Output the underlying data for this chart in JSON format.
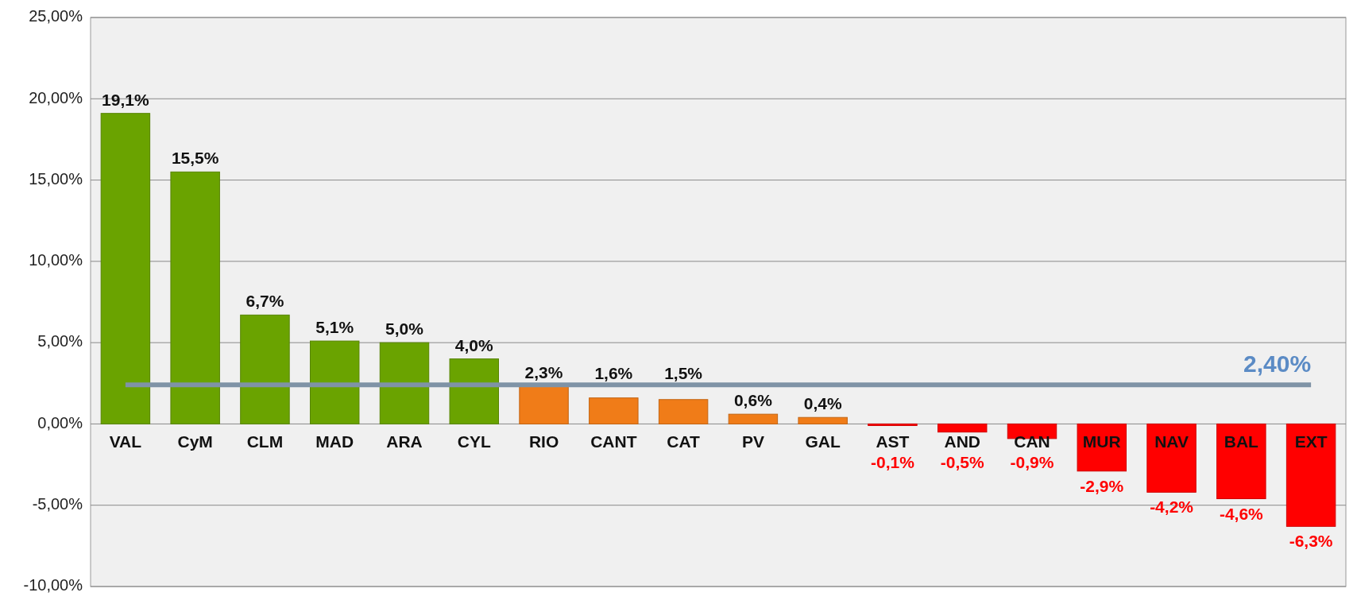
{
  "chart_data": {
    "type": "bar",
    "categories": [
      "VAL",
      "CyM",
      "CLM",
      "MAD",
      "ARA",
      "CYL",
      "RIO",
      "CANT",
      "CAT",
      "PV",
      "GAL",
      "AST",
      "AND",
      "CAN",
      "MUR",
      "NAV",
      "BAL",
      "EXT"
    ],
    "values": [
      19.1,
      15.5,
      6.7,
      5.1,
      5.0,
      4.0,
      2.3,
      1.6,
      1.5,
      0.6,
      0.4,
      -0.1,
      -0.5,
      -0.9,
      -2.9,
      -4.2,
      -4.6,
      -6.3
    ],
    "colors": [
      "#6aa300",
      "#6aa300",
      "#6aa300",
      "#6aa300",
      "#6aa300",
      "#6aa300",
      "#f07c18",
      "#f07c18",
      "#f07c18",
      "#f07c18",
      "#f07c18",
      "#ff0000",
      "#ff0000",
      "#ff0000",
      "#ff0000",
      "#ff0000",
      "#ff0000",
      "#ff0000"
    ],
    "value_labels": [
      "19,1%",
      "15,5%",
      "6,7%",
      "5,1%",
      "5,0%",
      "4,0%",
      "2,3%",
      "1,6%",
      "1,5%",
      "0,6%",
      "0,4%",
      "-0,1%",
      "-0,5%",
      "-0,9%",
      "-2,9%",
      "-4,2%",
      "-4,6%",
      "-6,3%"
    ],
    "ylim": [
      -10,
      25
    ],
    "yticks": [
      {
        "value": -10,
        "label": "-10,00%"
      },
      {
        "value": -5,
        "label": "-5,00%"
      },
      {
        "value": 0,
        "label": "0,00%"
      },
      {
        "value": 5,
        "label": "5,00%"
      },
      {
        "value": 10,
        "label": "10,00%"
      },
      {
        "value": 15,
        "label": "15,00%"
      },
      {
        "value": 20,
        "label": "20,00%"
      },
      {
        "value": 25,
        "label": "25,00%"
      }
    ],
    "grid": "y",
    "ref_lines": [
      {
        "axis": "y",
        "value": 2.4,
        "label": "2,40%",
        "color": "#7f93a6"
      }
    ]
  }
}
